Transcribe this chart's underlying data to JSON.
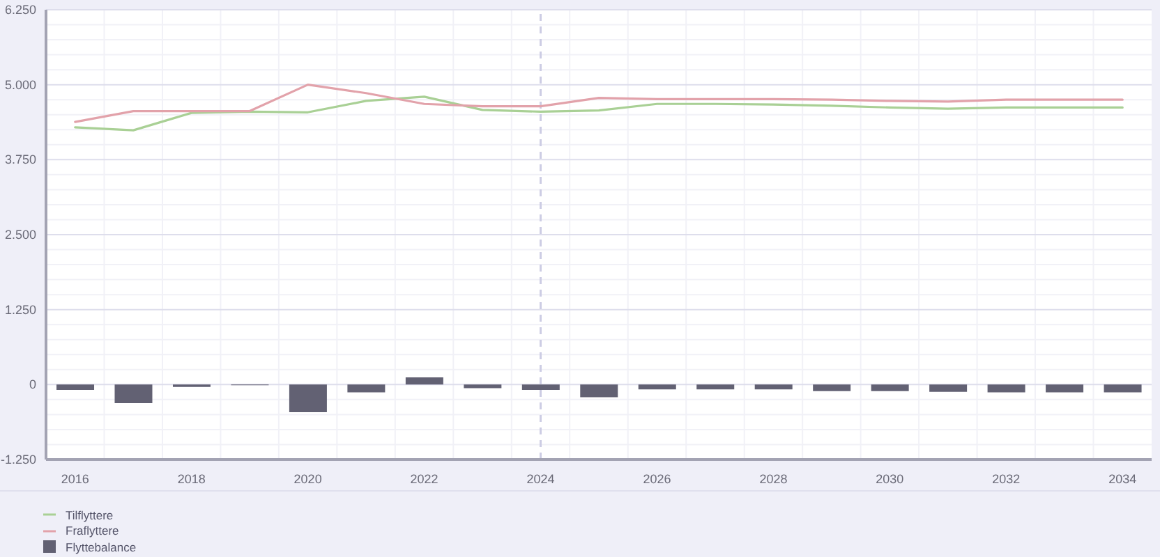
{
  "chart_data": {
    "type": "bar",
    "categories": [
      "2016",
      null,
      "2018",
      null,
      "2020",
      null,
      "2022",
      null,
      "2024",
      null,
      "2026",
      null,
      "2028",
      null,
      "2030",
      null,
      "2032",
      null,
      "2034"
    ],
    "series": [
      {
        "name": "Tilflyttere",
        "type": "line",
        "color": "#a9d095",
        "values": [
          4290,
          4240,
          4530,
          4550,
          4540,
          4730,
          4800,
          4580,
          4550,
          4570,
          4680,
          4680,
          4670,
          4650,
          4620,
          4600,
          4620,
          4620,
          4620
        ]
      },
      {
        "name": "Fraflyttere",
        "type": "line",
        "color": "#e2a2aa",
        "values": [
          4380,
          4560,
          4560,
          4560,
          5000,
          4860,
          4680,
          4640,
          4640,
          4780,
          4760,
          4760,
          4760,
          4750,
          4730,
          4720,
          4750,
          4750,
          4750
        ]
      },
      {
        "name": "Flyttebalance",
        "color": "#626173",
        "values": [
          -90,
          -310,
          -40,
          -10,
          -460,
          -130,
          120,
          -60,
          -90,
          -210,
          -80,
          -80,
          -80,
          -110,
          -110,
          -120,
          -130,
          -130,
          -130
        ]
      }
    ],
    "ylim": [
      -1250,
      6250
    ],
    "yticks": [
      {
        "value": -1250,
        "label": "-1.250"
      },
      {
        "value": -1000,
        "label": null
      },
      {
        "value": -750,
        "label": null
      },
      {
        "value": -500,
        "label": null
      },
      {
        "value": -250,
        "label": null
      },
      0,
      {
        "value": 250,
        "label": null
      },
      {
        "value": 500,
        "label": null
      },
      {
        "value": 750,
        "label": null
      },
      {
        "value": 1000,
        "label": null
      },
      {
        "value": 1250,
        "label": "1.250"
      },
      {
        "value": 1500,
        "label": null
      },
      {
        "value": 1750,
        "label": null
      },
      {
        "value": 2000,
        "label": null
      },
      {
        "value": 2250,
        "label": null
      },
      {
        "value": 2500,
        "label": "2.500"
      },
      {
        "value": 2750,
        "label": null
      },
      {
        "value": 3000,
        "label": null
      },
      {
        "value": 3250,
        "label": null
      },
      {
        "value": 3500,
        "label": null
      },
      {
        "value": 3750,
        "label": "3.750"
      },
      {
        "value": 4000,
        "label": null
      },
      {
        "value": 4250,
        "label": null
      },
      {
        "value": 4500,
        "label": null
      },
      {
        "value": 4750,
        "label": null
      },
      {
        "value": 5000,
        "label": "5.000"
      },
      {
        "value": 5250,
        "label": null
      },
      {
        "value": 5500,
        "label": null
      },
      {
        "value": 5750,
        "label": null
      },
      {
        "value": 6000,
        "label": null
      },
      {
        "value": 6250,
        "label": "6.250"
      }
    ],
    "grid": true,
    "legend": "bottom left",
    "marker": "none",
    "line_style": "solid",
    "ref_lines": [
      {
        "axis": "x",
        "value": "2024",
        "line_style": "dashed",
        "color": "#cdcde4"
      }
    ]
  }
}
